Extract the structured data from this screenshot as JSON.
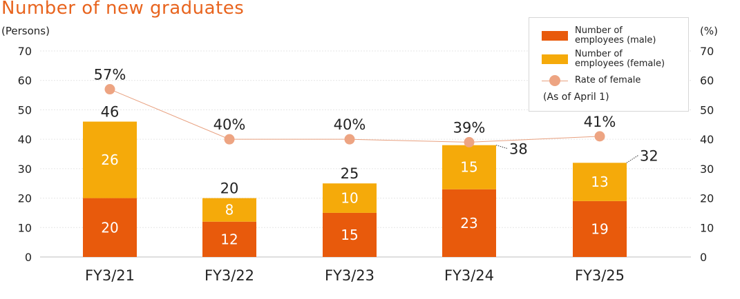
{
  "chart_data": {
    "type": "bar",
    "stacked": true,
    "title": "Number of new graduates",
    "left_unit": "(Persons)",
    "right_unit": "(%)",
    "categories": [
      "FY3/21",
      "FY3/22",
      "FY3/23",
      "FY3/24",
      "FY3/25"
    ],
    "series": [
      {
        "name": "Number of employees (male)",
        "values": [
          20,
          12,
          15,
          23,
          19
        ],
        "color": "#e85a0c"
      },
      {
        "name": "Number of employees (female)",
        "values": [
          26,
          8,
          10,
          15,
          13
        ],
        "color": "#f5aa0a"
      }
    ],
    "totals": [
      46,
      20,
      25,
      38,
      32
    ],
    "line_series": {
      "name": "Rate of female",
      "values": [
        57,
        40,
        40,
        39,
        41
      ],
      "labels": [
        "57%",
        "40%",
        "40%",
        "39%",
        "41%"
      ],
      "color": "#eda482"
    },
    "ylim": [
      0,
      70
    ],
    "y2lim": [
      0,
      70
    ],
    "yticks": [
      0,
      10,
      20,
      30,
      40,
      50,
      60,
      70
    ],
    "grid": true,
    "legend_position": "top-right",
    "note": "(As of April 1)"
  },
  "legend": {
    "male_line1": "Number of",
    "male_line2": "employees (male)",
    "female_line1": "Number of",
    "female_line2": "employees (female)",
    "rate": "Rate of female",
    "note": "(As of April 1)"
  }
}
